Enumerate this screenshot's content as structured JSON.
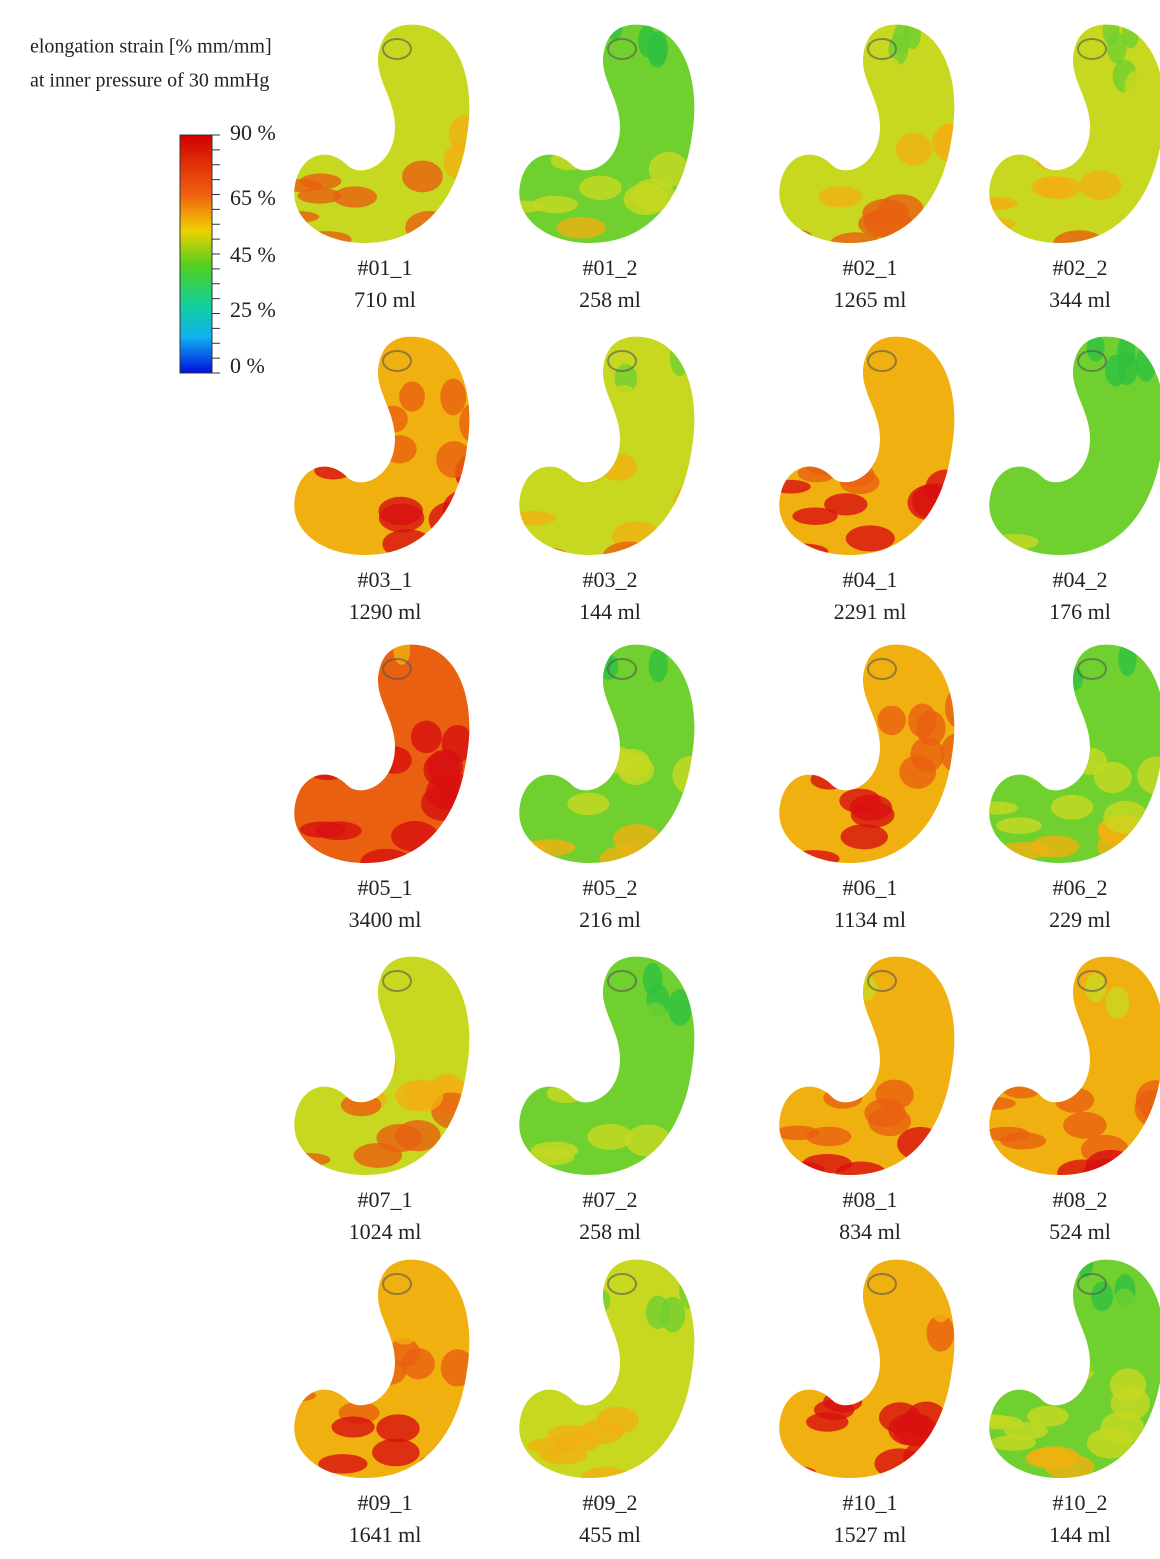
{
  "title": [
    "elongation strain [% mm/mm]",
    "at inner pressure of 30 mmHg"
  ],
  "colorbar": {
    "labels": [
      "90  %",
      "65 %",
      "45 %",
      "25 %",
      "0 %"
    ]
  },
  "specimens": [
    {
      "id": "#01_1",
      "volume": "710 ml"
    },
    {
      "id": "#01_2",
      "volume": "258 ml"
    },
    {
      "id": "#02_1",
      "volume": "1265 ml"
    },
    {
      "id": "#02_2",
      "volume": "344 ml"
    },
    {
      "id": "#03_1",
      "volume": "1290 ml"
    },
    {
      "id": "#03_2",
      "volume": "144 ml"
    },
    {
      "id": "#04_1",
      "volume": "2291 ml"
    },
    {
      "id": "#04_2",
      "volume": "176 ml"
    },
    {
      "id": "#05_1",
      "volume": "3400 ml"
    },
    {
      "id": "#05_2",
      "volume": "216 ml"
    },
    {
      "id": "#06_1",
      "volume": "1134 ml"
    },
    {
      "id": "#06_2",
      "volume": "229 ml"
    },
    {
      "id": "#07_1",
      "volume": "1024 ml"
    },
    {
      "id": "#07_2",
      "volume": "258 ml"
    },
    {
      "id": "#08_1",
      "volume": "834 ml"
    },
    {
      "id": "#08_2",
      "volume": "524 ml"
    },
    {
      "id": "#09_1",
      "volume": "1641 ml"
    },
    {
      "id": "#09_2",
      "volume": "455 ml"
    },
    {
      "id": "#10_1",
      "volume": "1527 ml"
    },
    {
      "id": "#10_2",
      "volume": "144 ml"
    }
  ]
}
